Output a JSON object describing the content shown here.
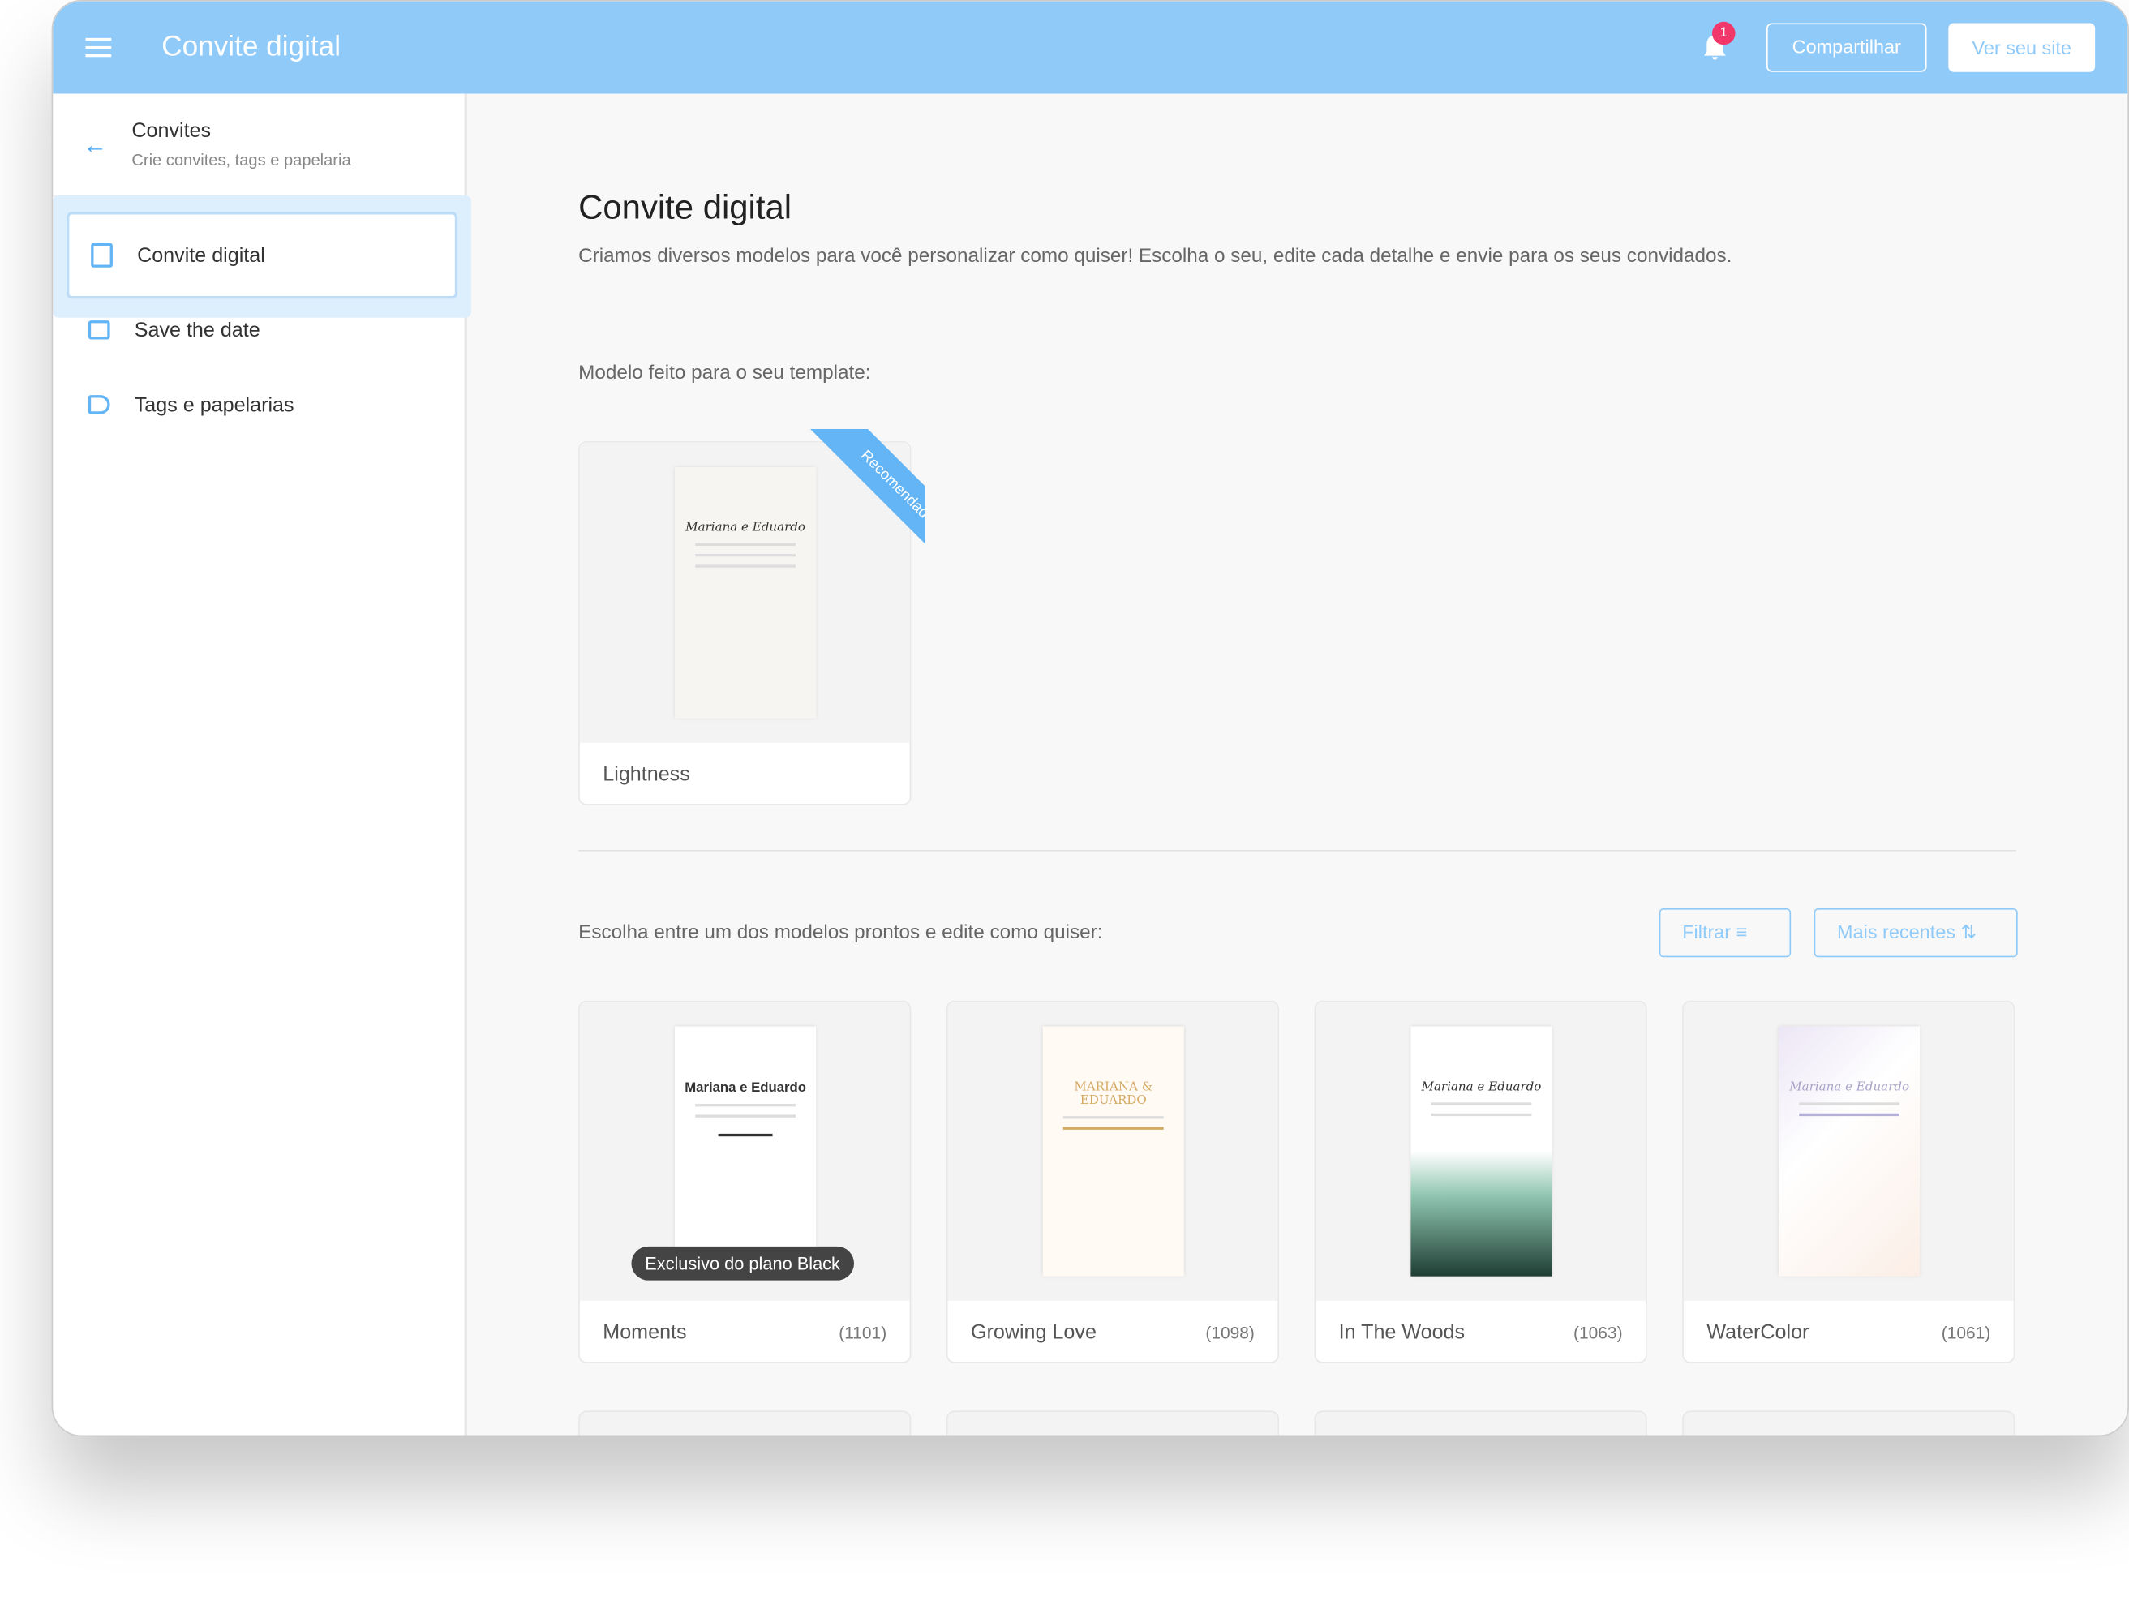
{
  "header": {
    "title": "Convite digital",
    "notifications": "1",
    "share": "Compartilhar",
    "view_site": "Ver seu site"
  },
  "sidebar": {
    "title": "Convites",
    "subtitle": "Crie convites, tags e papelaria",
    "items": [
      {
        "label": "Convite digital",
        "icon": "invitation-icon",
        "selected": true
      },
      {
        "label": "Save the date",
        "icon": "envelope-icon"
      },
      {
        "label": "Tags e papelarias",
        "icon": "tag-icon"
      }
    ]
  },
  "main": {
    "title": "Convite digital",
    "lead": "Criamos diversos modelos para você personalizar como quiser! Escolha o seu, edite cada detalhe e envie para os seus convidados.",
    "recommended_heading": "Modelo feito para o seu template:",
    "recommended": {
      "name": "Lightness",
      "ribbon": "Recomendado",
      "preview": "Mariana e Eduardo"
    },
    "choose_heading": "Escolha entre um dos modelos prontos e edite como quiser:",
    "filter": "Filtrar",
    "sort": "Mais recentes",
    "templates": [
      {
        "name": "Moments",
        "count": "(1101)",
        "preview": "Mariana e Eduardo",
        "badge": "Exclusivo do plano Black"
      },
      {
        "name": "Growing Love",
        "count": "(1098)",
        "preview": "MARIANA & EDUARDO"
      },
      {
        "name": "In The Woods",
        "count": "(1063)",
        "preview": "Mariana e Eduardo"
      },
      {
        "name": "WaterColor",
        "count": "(1061)",
        "preview": "Mariana e Eduardo"
      }
    ]
  },
  "colors": {
    "accent": "#90caf9",
    "badge": "#f2386b"
  }
}
